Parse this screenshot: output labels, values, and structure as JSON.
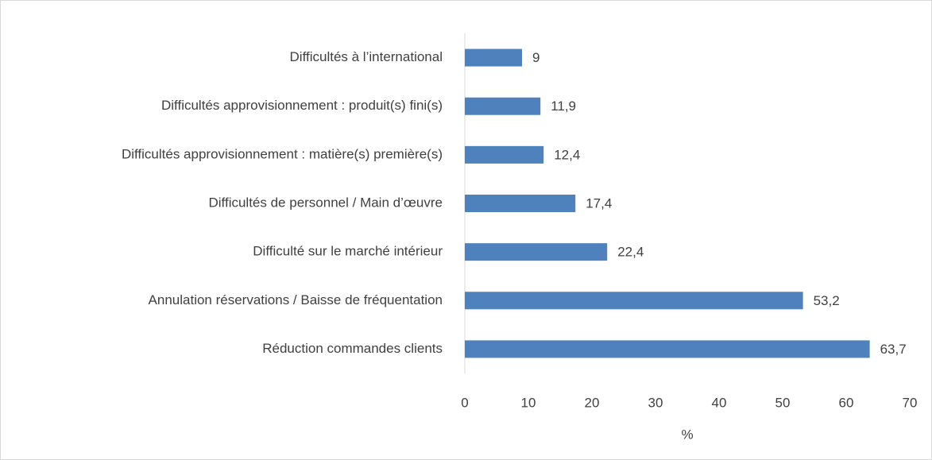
{
  "chart_data": {
    "type": "hbar",
    "categories": [
      "Difficultés à l’international",
      "Difficultés approvisionnement : produit(s) fini(s)",
      "Difficultés approvisionnement : matière(s) première(s)",
      "Difficultés de personnel / Main d’œuvre",
      "Difficulté sur le marché intérieur",
      "Annulation réservations / Baisse de fréquentation",
      "Réduction commandes clients"
    ],
    "values": [
      9,
      11.9,
      12.4,
      17.4,
      22.4,
      53.2,
      63.7
    ],
    "value_labels": [
      "9",
      "11,9",
      "12,4",
      "17,4",
      "22,4",
      "53,2",
      "63,7"
    ],
    "color": "#4f81bd",
    "xlim": [
      0,
      70
    ],
    "xticks": [
      0,
      10,
      20,
      30,
      40,
      50,
      60,
      70
    ],
    "xlabel": "%"
  }
}
